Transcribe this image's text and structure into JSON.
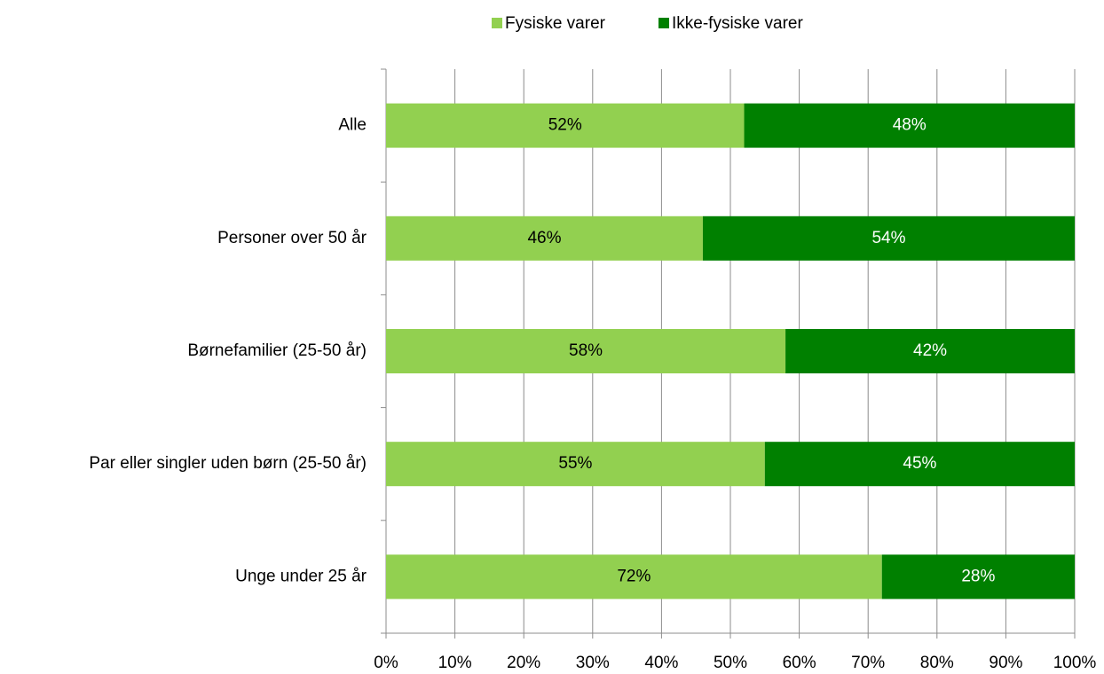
{
  "chart_data": {
    "type": "stacked_barh",
    "categories": [
      "Alle",
      "Personer over 50 år",
      "Børnefamilier (25-50 år)",
      "Par eller singler uden børn (25-50 år)",
      "Unge under 25 år"
    ],
    "series": [
      {
        "name": "Fysiske varer",
        "color": "#92d050",
        "values": [
          52,
          46,
          58,
          55,
          72
        ],
        "value_labels": [
          "52%",
          "46%",
          "58%",
          "55%",
          "72%"
        ]
      },
      {
        "name": "Ikke-fysiske varer",
        "color": "#008000",
        "values": [
          48,
          54,
          42,
          45,
          28
        ],
        "value_labels": [
          "48%",
          "54%",
          "42%",
          "45%",
          "28%"
        ]
      }
    ],
    "xlim": [
      0,
      100
    ],
    "xticks": [
      {
        "value": 0,
        "label": "0%"
      },
      {
        "value": 10,
        "label": "10%"
      },
      {
        "value": 20,
        "label": "20%"
      },
      {
        "value": 30,
        "label": "30%"
      },
      {
        "value": 40,
        "label": "40%"
      },
      {
        "value": 50,
        "label": "50%"
      },
      {
        "value": 60,
        "label": "60%"
      },
      {
        "value": 70,
        "label": "70%"
      },
      {
        "value": 80,
        "label": "80%"
      },
      {
        "value": 90,
        "label": "90%"
      },
      {
        "value": 100,
        "label": "100%"
      }
    ],
    "grid": true,
    "legend": "top"
  }
}
